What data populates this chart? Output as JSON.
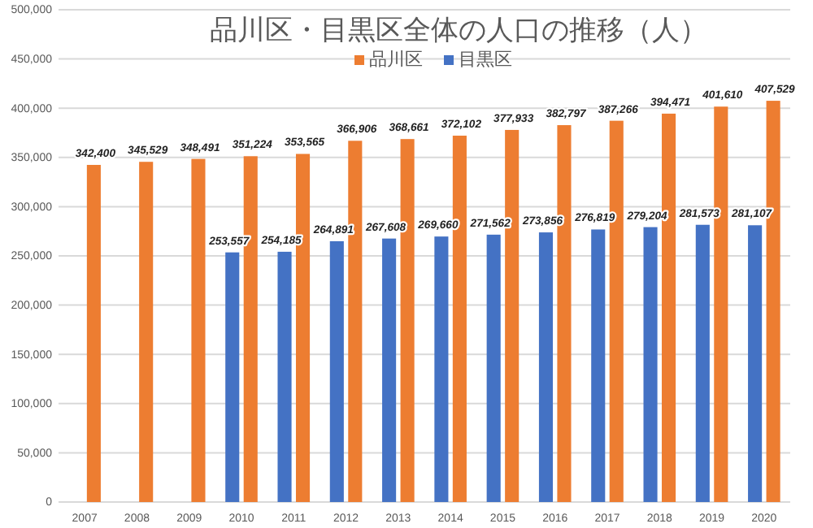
{
  "chart_data": {
    "type": "bar",
    "title": "品川区・目黒区全体の人口の推移（人）",
    "categories": [
      "2007",
      "2008",
      "2009",
      "2010",
      "2011",
      "2012",
      "2013",
      "2014",
      "2015",
      "2016",
      "2017",
      "2018",
      "2019",
      "2020"
    ],
    "series": [
      {
        "name": "品川区",
        "color": "#ed7d31",
        "values": [
          342400,
          345529,
          348491,
          351224,
          353565,
          366906,
          368661,
          372102,
          377933,
          382797,
          387266,
          394471,
          401610,
          407529
        ],
        "value_labels": [
          "342,400",
          "345,529",
          "348,491",
          "351,224",
          "353,565",
          "366,906",
          "368,661",
          "372,102",
          "377,933",
          "382,797",
          "387,266",
          "394,471",
          "401,610",
          "407,529"
        ]
      },
      {
        "name": "目黒区",
        "color": "#4472c4",
        "values": [
          null,
          null,
          null,
          253557,
          254185,
          264891,
          267608,
          269660,
          271562,
          273856,
          276819,
          279204,
          281573,
          281107
        ],
        "value_labels": [
          null,
          null,
          null,
          "253,557",
          "254,185",
          "264,891",
          "267,608",
          "269,660",
          "271,562",
          "273,856",
          "276,819",
          "279,204",
          "281,573",
          "281,107"
        ]
      }
    ],
    "ylim": [
      0,
      500000
    ],
    "yticks": [
      {
        "value": 0,
        "label": "0"
      },
      {
        "value": 50000,
        "label": "50,000"
      },
      {
        "value": 100000,
        "label": "100,000"
      },
      {
        "value": 150000,
        "label": "150,000"
      },
      {
        "value": 200000,
        "label": "200,000"
      },
      {
        "value": 250000,
        "label": "250,000"
      },
      {
        "value": 300000,
        "label": "300,000"
      },
      {
        "value": 350000,
        "label": "350,000"
      },
      {
        "value": 400000,
        "label": "400,000"
      },
      {
        "value": 450000,
        "label": "450,000"
      },
      {
        "value": 500000,
        "label": "500,000"
      }
    ],
    "grid": "y",
    "legend": "top"
  }
}
